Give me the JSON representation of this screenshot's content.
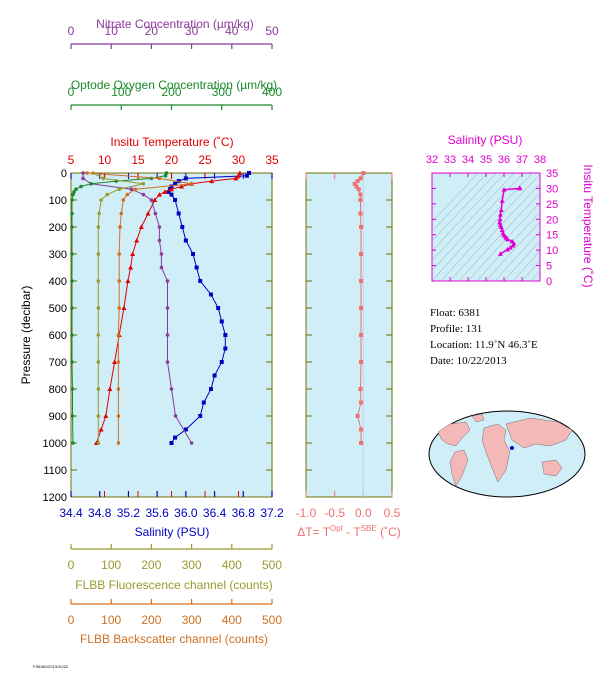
{
  "colors": {
    "nitrate": "#8a3a9a",
    "oxygen": "#1a8a2a",
    "temperature": "#e00000",
    "salinity": "#0000c0",
    "fluorescence": "#9a9a30",
    "backscatter": "#d07020",
    "delta_t": "#f07070",
    "ts_axis": "#e000d0",
    "plot_bg": "#d0eef8",
    "axis": "#707000"
  },
  "labels": {
    "nitrate_axis": "Nitrate Concentration (µm/kg)",
    "oxygen_axis": "Optode Oxygen Concentration (µm/kg)",
    "temperature_axis": "Insitu Temperature (˚C)",
    "pressure_axis": "Pressure (decibar)",
    "salinity_axis": "Salinity (PSU)",
    "fluorescence_axis": "FLBB Fluorescence channel (counts)",
    "backscatter_axis": "FLBB Backscatter channel (counts)",
    "delta_prefix": "ΔT= T",
    "delta_sup1": "Opt",
    "delta_mid": " - T",
    "delta_sup2": "SBE",
    "delta_suffix": " (˚C)",
    "ts_salinity_axis": "Salinity (PSU)",
    "ts_temperature_axis": "Insitu Temperature (˚C)",
    "footer": "FS6381/2013/10/22"
  },
  "info": {
    "float": "Float:  6381",
    "profile": "Profile:  131",
    "location": "Location:  11.9˚N  46.3˚E",
    "date": "Date:  10/22/2013"
  },
  "chart_data": [
    {
      "type": "line",
      "title": "",
      "ylabel": "Pressure (decibar)",
      "ylim": [
        0,
        1200
      ],
      "y_inverted": true,
      "yticks": [
        0,
        100,
        200,
        300,
        400,
        500,
        600,
        700,
        800,
        900,
        1000,
        1100,
        1200
      ],
      "axes": {
        "nitrate": {
          "label": "Nitrate Concentration (µm/kg)",
          "lim": [
            0,
            50
          ],
          "ticks": [
            0,
            10,
            20,
            30,
            40,
            50
          ]
        },
        "oxygen": {
          "label": "Optode Oxygen Concentration (µm/kg)",
          "lim": [
            0,
            400
          ],
          "ticks": [
            0,
            100,
            200,
            300,
            400
          ]
        },
        "temperature": {
          "label": "Insitu Temperature (˚C)",
          "lim": [
            5,
            35
          ],
          "ticks": [
            5,
            10,
            15,
            20,
            25,
            30,
            35
          ]
        },
        "salinity": {
          "label": "Salinity (PSU)",
          "lim": [
            34.4,
            37.2
          ],
          "ticks": [
            "34.4",
            "34.8",
            "35.2",
            "35.6",
            "36.0",
            "36.4",
            "36.8",
            "37.2"
          ]
        },
        "fluorescence": {
          "label": "FLBB Fluorescence channel (counts)",
          "lim": [
            0,
            500
          ],
          "ticks": [
            0,
            100,
            200,
            300,
            400,
            500
          ]
        },
        "backscatter": {
          "label": "FLBB Backscatter channel (counts)",
          "lim": [
            0,
            500
          ],
          "ticks": [
            0,
            100,
            200,
            300,
            400,
            500
          ]
        }
      },
      "series": [
        {
          "key": "salinity",
          "pressure": [
            0,
            10,
            20,
            30,
            40,
            50,
            60,
            70,
            80,
            100,
            150,
            200,
            250,
            300,
            350,
            400,
            450,
            500,
            550,
            600,
            650,
            700,
            750,
            800,
            850,
            900,
            950,
            980,
            1000
          ],
          "values": [
            36.88,
            36.85,
            36.0,
            35.9,
            35.85,
            35.8,
            35.78,
            35.76,
            35.8,
            35.85,
            35.9,
            35.95,
            36.0,
            36.1,
            36.15,
            36.2,
            36.35,
            36.45,
            36.5,
            36.55,
            36.55,
            36.5,
            36.4,
            36.35,
            36.25,
            36.2,
            36.0,
            35.85,
            35.8
          ]
        },
        {
          "key": "temperature",
          "pressure": [
            0,
            10,
            20,
            30,
            40,
            50,
            60,
            70,
            80,
            100,
            150,
            200,
            250,
            300,
            350,
            400,
            500,
            600,
            700,
            800,
            900,
            950,
            1000
          ],
          "values": [
            30.2,
            30.0,
            29.6,
            26.0,
            23.0,
            21.5,
            20.0,
            19.0,
            18.2,
            17.5,
            16.5,
            15.5,
            14.8,
            14.2,
            13.9,
            13.5,
            12.9,
            12.2,
            11.5,
            10.8,
            10.2,
            9.5,
            8.8
          ]
        },
        {
          "key": "nitrate",
          "pressure": [
            0,
            20,
            40,
            60,
            80,
            100,
            150,
            200,
            250,
            300,
            350,
            400,
            500,
            600,
            700,
            800,
            900,
            1000
          ],
          "values": [
            3,
            3,
            5,
            15,
            18,
            20,
            21,
            22,
            22,
            22.5,
            22.5,
            24,
            24,
            24,
            24,
            25,
            26,
            30
          ]
        },
        {
          "key": "oxygen",
          "pressure": [
            0,
            10,
            20,
            30,
            40,
            50,
            60,
            70,
            80,
            100,
            150,
            200,
            300,
            400,
            500,
            600,
            700,
            800,
            900,
            1000
          ],
          "values": [
            190,
            188,
            160,
            90,
            40,
            20,
            10,
            6,
            4,
            2,
            2,
            2,
            2,
            2,
            2,
            2,
            2,
            3,
            3,
            4
          ]
        },
        {
          "key": "fluorescence",
          "pressure": [
            0,
            20,
            40,
            60,
            80,
            100,
            150,
            200,
            300,
            400,
            500,
            600,
            700,
            800,
            900,
            1000
          ],
          "values": [
            55,
            80,
            180,
            120,
            90,
            75,
            70,
            68,
            68,
            68,
            68,
            68,
            68,
            68,
            68,
            68
          ]
        },
        {
          "key": "backscatter",
          "pressure": [
            0,
            20,
            40,
            60,
            80,
            100,
            150,
            200,
            300,
            400,
            500,
            600,
            700,
            800,
            900,
            1000
          ],
          "values": [
            40,
            220,
            300,
            160,
            140,
            130,
            125,
            122,
            120,
            120,
            120,
            118,
            118,
            118,
            118,
            118
          ]
        }
      ]
    },
    {
      "type": "line",
      "title": "",
      "xlabel": "ΔT= T Opt - T SBE (˚C)",
      "xlim": [
        -1.0,
        0.5
      ],
      "xticks": [
        "-1.0",
        "-0.5",
        "0.0",
        "0.5"
      ],
      "ylim": [
        0,
        1200
      ],
      "y_inverted": true,
      "series": [
        {
          "key": "delta_t",
          "pressure": [
            0,
            20,
            30,
            40,
            50,
            60,
            80,
            100,
            150,
            200,
            300,
            400,
            500,
            600,
            700,
            800,
            850,
            900,
            950,
            1000
          ],
          "values": [
            0.0,
            -0.05,
            -0.1,
            -0.15,
            -0.12,
            -0.08,
            -0.05,
            -0.05,
            -0.05,
            -0.04,
            -0.04,
            -0.04,
            -0.04,
            -0.04,
            -0.04,
            -0.05,
            -0.04,
            -0.1,
            -0.04,
            -0.04
          ]
        }
      ]
    },
    {
      "type": "scatter",
      "title": "",
      "xlabel": "Salinity (PSU)",
      "ylabel": "Insitu Temperature (˚C)",
      "xlim": [
        32,
        38
      ],
      "ylim": [
        0,
        35
      ],
      "xticks": [
        32,
        33,
        34,
        35,
        36,
        37,
        38
      ],
      "yticks": [
        0,
        5,
        10,
        15,
        20,
        25,
        30,
        35
      ],
      "series": [
        {
          "key": "ts",
          "x": [
            36.88,
            36.85,
            36.0,
            35.9,
            35.85,
            35.8,
            35.78,
            35.76,
            35.8,
            35.85,
            35.9,
            35.95,
            36.0,
            36.1,
            36.15,
            36.2,
            36.45,
            36.55,
            36.5,
            36.35,
            36.2,
            35.8
          ],
          "y": [
            30.2,
            30.0,
            29.6,
            26.0,
            23.0,
            21.5,
            20.0,
            19.0,
            18.2,
            17.5,
            16.5,
            15.5,
            14.8,
            14.2,
            13.9,
            13.5,
            12.9,
            12.2,
            11.5,
            10.8,
            10.2,
            8.8
          ]
        }
      ]
    }
  ]
}
